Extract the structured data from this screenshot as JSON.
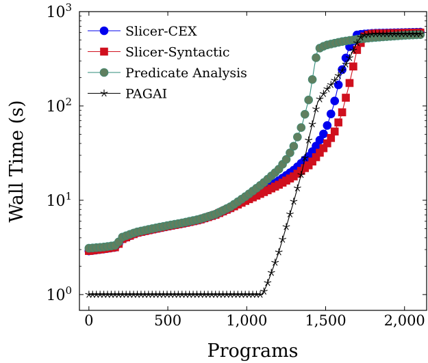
{
  "chart_data": {
    "type": "line",
    "xlabel": "Programs",
    "ylabel": "Wall Time (s)",
    "xlim": [
      -60,
      2140
    ],
    "ylim": [
      0.68,
      1000
    ],
    "yscale": "log",
    "xticks": [
      {
        "value": 0,
        "label": "0"
      },
      {
        "value": 500,
        "label": "500"
      },
      {
        "value": 1000,
        "label": "1,000"
      },
      {
        "value": 1500,
        "label": "1,500"
      },
      {
        "value": 2000,
        "label": "2,000"
      }
    ],
    "yticks": [
      {
        "value": 1,
        "base": "10",
        "exp": "0"
      },
      {
        "value": 10,
        "base": "10",
        "exp": "1"
      },
      {
        "value": 100,
        "base": "10",
        "exp": "2"
      },
      {
        "value": 1000,
        "base": "10",
        "exp": "3"
      }
    ],
    "legend_position": "top-left",
    "grid": false,
    "series": [
      {
        "name": "Slicer-CEX",
        "color": "#0000ee",
        "marker": "circle",
        "points": [
          [
            0,
            2.9
          ],
          [
            100,
            3.05
          ],
          [
            180,
            3.2
          ],
          [
            200,
            3.8
          ],
          [
            300,
            4.5
          ],
          [
            400,
            4.9
          ],
          [
            500,
            5.3
          ],
          [
            600,
            5.7
          ],
          [
            700,
            6.2
          ],
          [
            800,
            7.0
          ],
          [
            900,
            8.3
          ],
          [
            1000,
            10.2
          ],
          [
            1100,
            12.8
          ],
          [
            1200,
            16.0
          ],
          [
            1300,
            21.0
          ],
          [
            1400,
            30.0
          ],
          [
            1450,
            40.0
          ],
          [
            1500,
            55.0
          ],
          [
            1550,
            100.0
          ],
          [
            1600,
            230.0
          ],
          [
            1650,
            420.0
          ],
          [
            1700,
            570.0
          ],
          [
            1800,
            590.0
          ],
          [
            1900,
            595.0
          ],
          [
            2000,
            600.0
          ],
          [
            2100,
            605.0
          ]
        ]
      },
      {
        "name": "Slicer-Syntactic",
        "color": "#d0101e",
        "marker": "square",
        "points": [
          [
            0,
            2.9
          ],
          [
            100,
            3.05
          ],
          [
            180,
            3.2
          ],
          [
            200,
            3.8
          ],
          [
            300,
            4.5
          ],
          [
            400,
            4.9
          ],
          [
            500,
            5.3
          ],
          [
            600,
            5.7
          ],
          [
            700,
            6.2
          ],
          [
            800,
            7.0
          ],
          [
            900,
            8.3
          ],
          [
            1000,
            10.0
          ],
          [
            1100,
            12.0
          ],
          [
            1200,
            14.5
          ],
          [
            1300,
            18.0
          ],
          [
            1400,
            24.0
          ],
          [
            1450,
            30.0
          ],
          [
            1500,
            38.0
          ],
          [
            1550,
            50.0
          ],
          [
            1600,
            80.0
          ],
          [
            1650,
            170.0
          ],
          [
            1700,
            400.0
          ],
          [
            1750,
            560.0
          ],
          [
            1800,
            585.0
          ],
          [
            1900,
            590.0
          ],
          [
            2000,
            595.0
          ],
          [
            2100,
            600.0
          ]
        ]
      },
      {
        "name": "Predicate Analysis",
        "color": "#2e8b7a",
        "fill": "#5f7f5f",
        "marker": "circle",
        "points": [
          [
            0,
            3.1
          ],
          [
            100,
            3.2
          ],
          [
            180,
            3.35
          ],
          [
            200,
            4.0
          ],
          [
            300,
            4.6
          ],
          [
            400,
            5.0
          ],
          [
            500,
            5.4
          ],
          [
            600,
            5.8
          ],
          [
            700,
            6.3
          ],
          [
            800,
            7.1
          ],
          [
            900,
            8.6
          ],
          [
            1000,
            11.2
          ],
          [
            1100,
            15.0
          ],
          [
            1200,
            21.0
          ],
          [
            1250,
            27.0
          ],
          [
            1300,
            38.0
          ],
          [
            1350,
            62.0
          ],
          [
            1400,
            130.0
          ],
          [
            1430,
            270.0
          ],
          [
            1450,
            400.0
          ],
          [
            1500,
            440.0
          ],
          [
            1600,
            480.0
          ],
          [
            1700,
            510.0
          ],
          [
            1800,
            530.0
          ],
          [
            1900,
            545.0
          ],
          [
            2000,
            560.0
          ],
          [
            2100,
            570.0
          ]
        ]
      },
      {
        "name": "PAGAI",
        "color": "#000000",
        "marker": "star",
        "points": [
          [
            0,
            1.0
          ],
          [
            200,
            1.0
          ],
          [
            400,
            1.0
          ],
          [
            600,
            1.0
          ],
          [
            800,
            1.0
          ],
          [
            1000,
            1.0
          ],
          [
            1100,
            1.0
          ],
          [
            1130,
            1.3
          ],
          [
            1200,
            2.7
          ],
          [
            1300,
            10.0
          ],
          [
            1350,
            20.0
          ],
          [
            1400,
            50.0
          ],
          [
            1450,
            110.0
          ],
          [
            1500,
            145.0
          ],
          [
            1550,
            180.0
          ],
          [
            1600,
            230.0
          ],
          [
            1650,
            320.0
          ],
          [
            1700,
            470.0
          ],
          [
            1730,
            560.0
          ],
          [
            1800,
            580.0
          ],
          [
            1900,
            580.0
          ],
          [
            2000,
            580.0
          ],
          [
            2100,
            580.0
          ]
        ]
      }
    ]
  }
}
